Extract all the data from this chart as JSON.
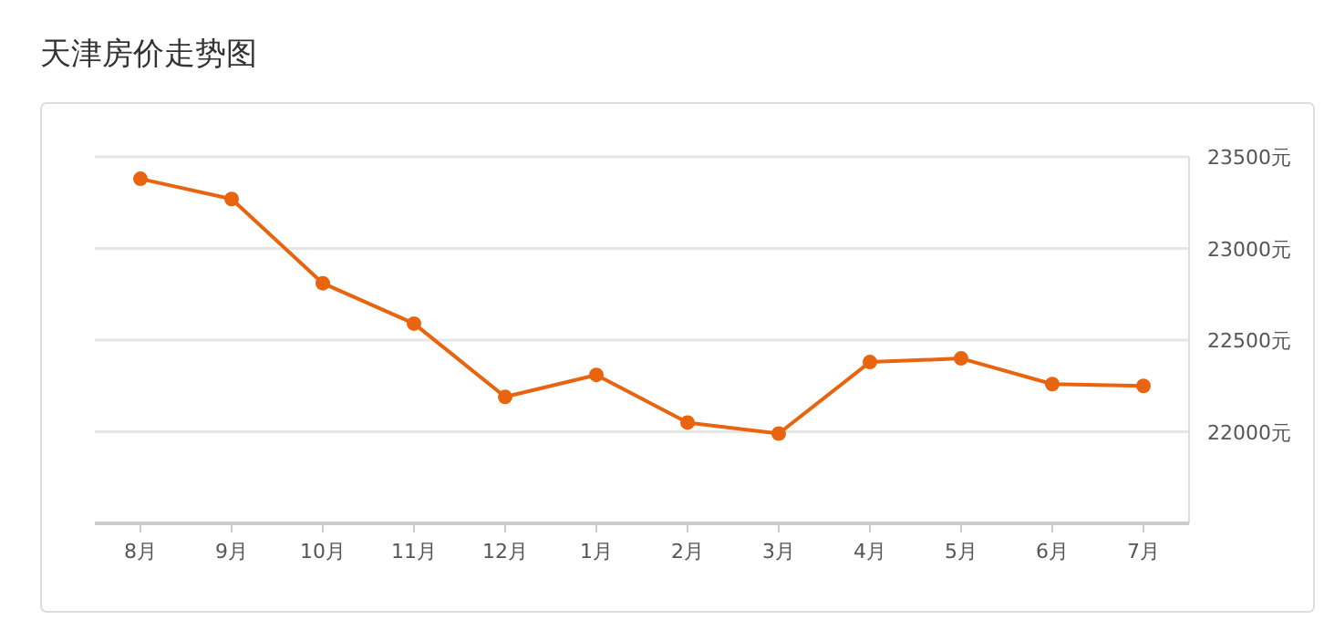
{
  "chart_data": {
    "type": "line",
    "title": "天津房价走势图",
    "categories": [
      "8月",
      "9月",
      "10月",
      "11月",
      "12月",
      "1月",
      "2月",
      "3月",
      "4月",
      "5月",
      "6月",
      "7月"
    ],
    "series": [
      {
        "color": "#e8640f",
        "values": [
          23380,
          23270,
          22810,
          22590,
          22190,
          22310,
          22050,
          21990,
          22380,
          22400,
          22260,
          22250
        ]
      }
    ],
    "ylim": [
      21500,
      23500
    ],
    "yticks": [
      {
        "value": 22000,
        "label": "22000元"
      },
      {
        "value": 22500,
        "label": "22500元"
      },
      {
        "value": 23000,
        "label": "23000元"
      },
      {
        "value": 23500,
        "label": "23500元"
      }
    ],
    "grid": "y",
    "marker": "circle",
    "line_style": "solid"
  }
}
